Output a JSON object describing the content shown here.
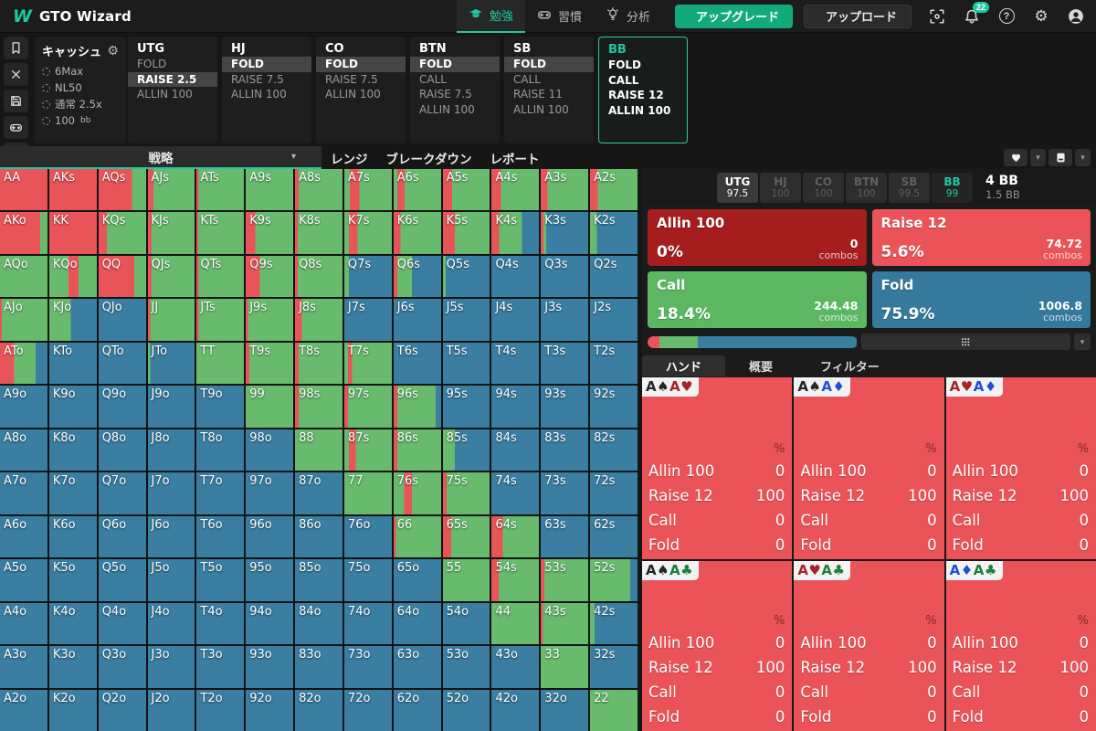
{
  "topbar": {
    "brand": "GTO Wizard",
    "logo_letter": "W",
    "nav": [
      {
        "id": "study",
        "label": "勉強",
        "icon": "grad-cap",
        "active": true
      },
      {
        "id": "practice",
        "label": "習慣",
        "icon": "gamepad",
        "active": false
      },
      {
        "id": "analyze",
        "label": "分析",
        "icon": "lightbulb",
        "active": false
      }
    ],
    "upgrade_label": "アップグレード",
    "upload_label": "アップロード",
    "notification_count": "22",
    "accent_color": "#1ec9a0"
  },
  "rail_icons": [
    "bookmark",
    "close",
    "save",
    "gamepad",
    "split"
  ],
  "solution_bar": {
    "settings": {
      "title": "キャッシュ",
      "items": [
        {
          "text": "6Max",
          "suffix": ""
        },
        {
          "text": "NL50",
          "suffix": ""
        },
        {
          "text": "通常 2.5x",
          "suffix": ""
        },
        {
          "text": "100",
          "suffix": "bb"
        }
      ]
    },
    "positions": [
      {
        "name": "UTG",
        "active": false,
        "actions": [
          {
            "label": "FOLD",
            "selected": false
          },
          {
            "label": "RAISE 2.5",
            "selected": true
          },
          {
            "label": "ALLIN 100",
            "selected": false
          }
        ]
      },
      {
        "name": "HJ",
        "active": false,
        "actions": [
          {
            "label": "FOLD",
            "selected": true
          },
          {
            "label": "RAISE 7.5",
            "selected": false
          },
          {
            "label": "ALLIN 100",
            "selected": false
          }
        ]
      },
      {
        "name": "CO",
        "active": false,
        "actions": [
          {
            "label": "FOLD",
            "selected": true
          },
          {
            "label": "RAISE 7.5",
            "selected": false
          },
          {
            "label": "ALLIN 100",
            "selected": false
          }
        ]
      },
      {
        "name": "BTN",
        "active": false,
        "actions": [
          {
            "label": "FOLD",
            "selected": true
          },
          {
            "label": "CALL",
            "selected": false
          },
          {
            "label": "RAISE 7.5",
            "selected": false
          },
          {
            "label": "ALLIN 100",
            "selected": false
          }
        ]
      },
      {
        "name": "SB",
        "active": false,
        "actions": [
          {
            "label": "FOLD",
            "selected": true
          },
          {
            "label": "CALL",
            "selected": false
          },
          {
            "label": "RAISE 11",
            "selected": false
          },
          {
            "label": "ALLIN 100",
            "selected": false
          }
        ]
      },
      {
        "name": "BB",
        "active": true,
        "actions": [
          {
            "label": "FOLD",
            "selected": false
          },
          {
            "label": "CALL",
            "selected": false
          },
          {
            "label": "RAISE 12",
            "selected": false
          },
          {
            "label": "ALLIN 100",
            "selected": false
          }
        ]
      }
    ]
  },
  "view_tabs": [
    {
      "label": "戦略",
      "active": true,
      "caret": true
    },
    {
      "label": "レンジ",
      "active": false,
      "caret": false
    },
    {
      "label": "ブレークダウン",
      "active": false,
      "caret": false
    },
    {
      "label": "レポート",
      "active": false,
      "caret": false
    }
  ],
  "grid": {
    "colors": {
      "r": "#e95459",
      "g": "#68bb6d",
      "b": "#3a7fa2"
    },
    "rows": [
      [
        [
          "AA",
          "r100"
        ],
        [
          "AKs",
          "r100"
        ],
        [
          "AQs",
          "r70 g30"
        ],
        [
          "AJs",
          "r12 g88"
        ],
        [
          "ATs",
          "r5 g95"
        ],
        [
          "A9s",
          "g100"
        ],
        [
          "A8s",
          "r8 g92"
        ],
        [
          "A7s",
          "g12 r20 g68"
        ],
        [
          "A6s",
          "g8 r15 g77"
        ],
        [
          "A5s",
          "r20 g80"
        ],
        [
          "A4s",
          "r20 g80"
        ],
        [
          "A3s",
          "r14 g86"
        ],
        [
          "A2s",
          "r16 g84"
        ]
      ],
      [
        [
          "AKo",
          "r85 g15"
        ],
        [
          "KK",
          "r100"
        ],
        [
          "KQs",
          "r17 g83"
        ],
        [
          "KJs",
          "r8 g92"
        ],
        [
          "KTs",
          "r4 g96"
        ],
        [
          "K9s",
          "r20 g80"
        ],
        [
          "K8s",
          "r6 g94"
        ],
        [
          "K7s",
          "g10 r18 g72"
        ],
        [
          "K6s",
          "r14 g86"
        ],
        [
          "K5s",
          "r25 g75"
        ],
        [
          "K4s",
          "r16 g48 b36"
        ],
        [
          "K3s",
          "r6 g6 b88"
        ],
        [
          "K2s",
          "g14 b86"
        ]
      ],
      [
        [
          "AQo",
          "g100"
        ],
        [
          "KQo",
          "g40 r22 g38"
        ],
        [
          "QQ",
          "r75 g25"
        ],
        [
          "QJs",
          "r8 g92"
        ],
        [
          "QTs",
          "r5 g95"
        ],
        [
          "Q9s",
          "r30 g70"
        ],
        [
          "Q8s",
          "r6 g94"
        ],
        [
          "Q7s",
          "g10 b90"
        ],
        [
          "Q6s",
          "r8 g30 b62"
        ],
        [
          "Q5s",
          "g6 b94"
        ],
        [
          "Q4s",
          "b100"
        ],
        [
          "Q3s",
          "b100"
        ],
        [
          "Q2s",
          "b100"
        ]
      ],
      [
        [
          "AJo",
          "r4 g96"
        ],
        [
          "KJo",
          "g45 b55"
        ],
        [
          "QJo",
          "b100"
        ],
        [
          "JJ",
          "r5 g95"
        ],
        [
          "JTs",
          "r5 g95"
        ],
        [
          "J9s",
          "r5 g95"
        ],
        [
          "J8s",
          "r14 g86"
        ],
        [
          "J7s",
          "b100"
        ],
        [
          "J6s",
          "b100"
        ],
        [
          "J5s",
          "b100"
        ],
        [
          "J4s",
          "b100"
        ],
        [
          "J3s",
          "b100"
        ],
        [
          "J2s",
          "b100"
        ]
      ],
      [
        [
          "ATo",
          "r30 g45 b25"
        ],
        [
          "KTo",
          "b100"
        ],
        [
          "QTo",
          "b100"
        ],
        [
          "JTo",
          "g5 b95"
        ],
        [
          "TT",
          "g100"
        ],
        [
          "T9s",
          "r8 g92"
        ],
        [
          "T8s",
          "r8 g92"
        ],
        [
          "T7s",
          "g8 r8 g84"
        ],
        [
          "T6s",
          "b100"
        ],
        [
          "T5s",
          "b100"
        ],
        [
          "T4s",
          "b100"
        ],
        [
          "T3s",
          "b100"
        ],
        [
          "T2s",
          "b100"
        ]
      ],
      [
        [
          "A9o",
          "b100"
        ],
        [
          "K9o",
          "b100"
        ],
        [
          "Q9o",
          "b100"
        ],
        [
          "J9o",
          "b100"
        ],
        [
          "T9o",
          "b100"
        ],
        [
          "99",
          "g100"
        ],
        [
          "98s",
          "r8 g92"
        ],
        [
          "97s",
          "r8 g92"
        ],
        [
          "96s",
          "r8 g80 b12"
        ],
        [
          "95s",
          "b100"
        ],
        [
          "94s",
          "b100"
        ],
        [
          "93s",
          "b100"
        ],
        [
          "92s",
          "b100"
        ]
      ],
      [
        [
          "A8o",
          "b100"
        ],
        [
          "K8o",
          "b100"
        ],
        [
          "Q8o",
          "b100"
        ],
        [
          "J8o",
          "b100"
        ],
        [
          "T8o",
          "b100"
        ],
        [
          "98o",
          "b100"
        ],
        [
          "88",
          "g100"
        ],
        [
          "87s",
          "g10 r14 g76"
        ],
        [
          "86s",
          "r8 g92"
        ],
        [
          "85s",
          "g25 b75"
        ],
        [
          "84s",
          "b100"
        ],
        [
          "83s",
          "b100"
        ],
        [
          "82s",
          "b100"
        ]
      ],
      [
        [
          "A7o",
          "b100"
        ],
        [
          "K7o",
          "b100"
        ],
        [
          "Q7o",
          "b100"
        ],
        [
          "J7o",
          "b100"
        ],
        [
          "T7o",
          "b100"
        ],
        [
          "97o",
          "b100"
        ],
        [
          "87o",
          "b100"
        ],
        [
          "77",
          "g100"
        ],
        [
          "76s",
          "g22 r16 g62"
        ],
        [
          "75s",
          "r8 g92"
        ],
        [
          "74s",
          "b100"
        ],
        [
          "73s",
          "b100"
        ],
        [
          "72s",
          "b100"
        ]
      ],
      [
        [
          "A6o",
          "b100"
        ],
        [
          "K6o",
          "b100"
        ],
        [
          "Q6o",
          "b100"
        ],
        [
          "J6o",
          "b100"
        ],
        [
          "T6o",
          "b100"
        ],
        [
          "96o",
          "b100"
        ],
        [
          "86o",
          "b100"
        ],
        [
          "76o",
          "b100"
        ],
        [
          "66",
          "r5 g95"
        ],
        [
          "65s",
          "r18 g82"
        ],
        [
          "64s",
          "r24 g76"
        ],
        [
          "63s",
          "b100"
        ],
        [
          "62s",
          "b100"
        ]
      ],
      [
        [
          "A5o",
          "b100"
        ],
        [
          "K5o",
          "b100"
        ],
        [
          "Q5o",
          "b100"
        ],
        [
          "J5o",
          "b100"
        ],
        [
          "T5o",
          "b100"
        ],
        [
          "95o",
          "b100"
        ],
        [
          "85o",
          "b100"
        ],
        [
          "75o",
          "b100"
        ],
        [
          "65o",
          "b100"
        ],
        [
          "55",
          "g100"
        ],
        [
          "54s",
          "r15 g85"
        ],
        [
          "53s",
          "r8 g92"
        ],
        [
          "52s",
          "g85 b15"
        ]
      ],
      [
        [
          "A4o",
          "b100"
        ],
        [
          "K4o",
          "b100"
        ],
        [
          "Q4o",
          "b100"
        ],
        [
          "J4o",
          "b100"
        ],
        [
          "T4o",
          "b100"
        ],
        [
          "94o",
          "b100"
        ],
        [
          "84o",
          "b100"
        ],
        [
          "74o",
          "b100"
        ],
        [
          "64o",
          "b100"
        ],
        [
          "54o",
          "b100"
        ],
        [
          "44",
          "g100"
        ],
        [
          "43s",
          "r5 g95"
        ],
        [
          "42s",
          "g10 b90"
        ]
      ],
      [
        [
          "A3o",
          "b100"
        ],
        [
          "K3o",
          "b100"
        ],
        [
          "Q3o",
          "b100"
        ],
        [
          "J3o",
          "b100"
        ],
        [
          "T3o",
          "b100"
        ],
        [
          "93o",
          "b100"
        ],
        [
          "83o",
          "b100"
        ],
        [
          "73o",
          "b100"
        ],
        [
          "63o",
          "b100"
        ],
        [
          "53o",
          "b100"
        ],
        [
          "43o",
          "b100"
        ],
        [
          "33",
          "g100"
        ],
        [
          "32s",
          "b100"
        ]
      ],
      [
        [
          "A2o",
          "b100"
        ],
        [
          "K2o",
          "b100"
        ],
        [
          "Q2o",
          "b100"
        ],
        [
          "J2o",
          "b100"
        ],
        [
          "T2o",
          "b100"
        ],
        [
          "92o",
          "b100"
        ],
        [
          "82o",
          "b100"
        ],
        [
          "72o",
          "b100"
        ],
        [
          "62o",
          "b100"
        ],
        [
          "52o",
          "b100"
        ],
        [
          "42o",
          "b100"
        ],
        [
          "32o",
          "b100"
        ],
        [
          "22",
          "g100"
        ]
      ]
    ]
  },
  "right_panel": {
    "pills": [
      {
        "name": "UTG",
        "value": "97.5",
        "state": "done"
      },
      {
        "name": "HJ",
        "value": "100",
        "state": "dim"
      },
      {
        "name": "CO",
        "value": "100",
        "state": "dim"
      },
      {
        "name": "BTN",
        "value": "100",
        "state": "dim"
      },
      {
        "name": "SB",
        "value": "99.5",
        "state": "dim"
      },
      {
        "name": "BB",
        "value": "99",
        "state": "active"
      }
    ],
    "pot": {
      "main": "4 BB",
      "sub": "1.5 BB"
    },
    "combos_label": "combos",
    "actions": [
      {
        "label": "Allin 100",
        "pct": "0%",
        "combos": "0",
        "color": "#a51d1d"
      },
      {
        "label": "Raise 12",
        "pct": "5.6%",
        "combos": "74.72",
        "color": "#ea5459"
      },
      {
        "label": "Call",
        "pct": "18.4%",
        "combos": "244.48",
        "color": "#5cb763"
      },
      {
        "label": "Fold",
        "pct": "75.9%",
        "combos": "1006.8",
        "color": "#35799c"
      }
    ],
    "strategy_bar": [
      {
        "color": "#e95459",
        "pct": 5.6
      },
      {
        "color": "#68bb6d",
        "pct": 18.4
      },
      {
        "color": "#3a7fa2",
        "pct": 75.9
      }
    ],
    "detail_tabs": [
      {
        "label": "ハンド",
        "active": true
      },
      {
        "label": "概要",
        "active": false
      },
      {
        "label": "フィルター",
        "active": false
      }
    ],
    "pct_header": "%",
    "card_bg": "#ea5358",
    "suit_map": {
      "spade": {
        "glyph": "♠",
        "color": "#262626"
      },
      "heart": {
        "glyph": "♥",
        "color": "#a8232b"
      },
      "diamond": {
        "glyph": "♦",
        "color": "#1d4fd7"
      },
      "club": {
        "glyph": "♣",
        "color": "#1e7e34"
      }
    },
    "hand_cards": [
      {
        "combo": [
          [
            "A",
            "spade"
          ],
          [
            "A",
            "heart"
          ]
        ],
        "rows": [
          [
            "Allin 100",
            "0"
          ],
          [
            "Raise 12",
            "100"
          ],
          [
            "Call",
            "0"
          ],
          [
            "Fold",
            "0"
          ]
        ]
      },
      {
        "combo": [
          [
            "A",
            "spade"
          ],
          [
            "A",
            "diamond"
          ]
        ],
        "rows": [
          [
            "Allin 100",
            "0"
          ],
          [
            "Raise 12",
            "100"
          ],
          [
            "Call",
            "0"
          ],
          [
            "Fold",
            "0"
          ]
        ]
      },
      {
        "combo": [
          [
            "A",
            "heart"
          ],
          [
            "A",
            "diamond"
          ]
        ],
        "rows": [
          [
            "Allin 100",
            "0"
          ],
          [
            "Raise 12",
            "100"
          ],
          [
            "Call",
            "0"
          ],
          [
            "Fold",
            "0"
          ]
        ]
      },
      {
        "combo": [
          [
            "A",
            "spade"
          ],
          [
            "A",
            "club"
          ]
        ],
        "rows": [
          [
            "Allin 100",
            "0"
          ],
          [
            "Raise 12",
            "100"
          ],
          [
            "Call",
            "0"
          ],
          [
            "Fold",
            "0"
          ]
        ]
      },
      {
        "combo": [
          [
            "A",
            "heart"
          ],
          [
            "A",
            "club"
          ]
        ],
        "rows": [
          [
            "Allin 100",
            "0"
          ],
          [
            "Raise 12",
            "100"
          ],
          [
            "Call",
            "0"
          ],
          [
            "Fold",
            "0"
          ]
        ]
      },
      {
        "combo": [
          [
            "A",
            "diamond"
          ],
          [
            "A",
            "club"
          ]
        ],
        "rows": [
          [
            "Allin 100",
            "0"
          ],
          [
            "Raise 12",
            "100"
          ],
          [
            "Call",
            "0"
          ],
          [
            "Fold",
            "0"
          ]
        ]
      }
    ]
  }
}
